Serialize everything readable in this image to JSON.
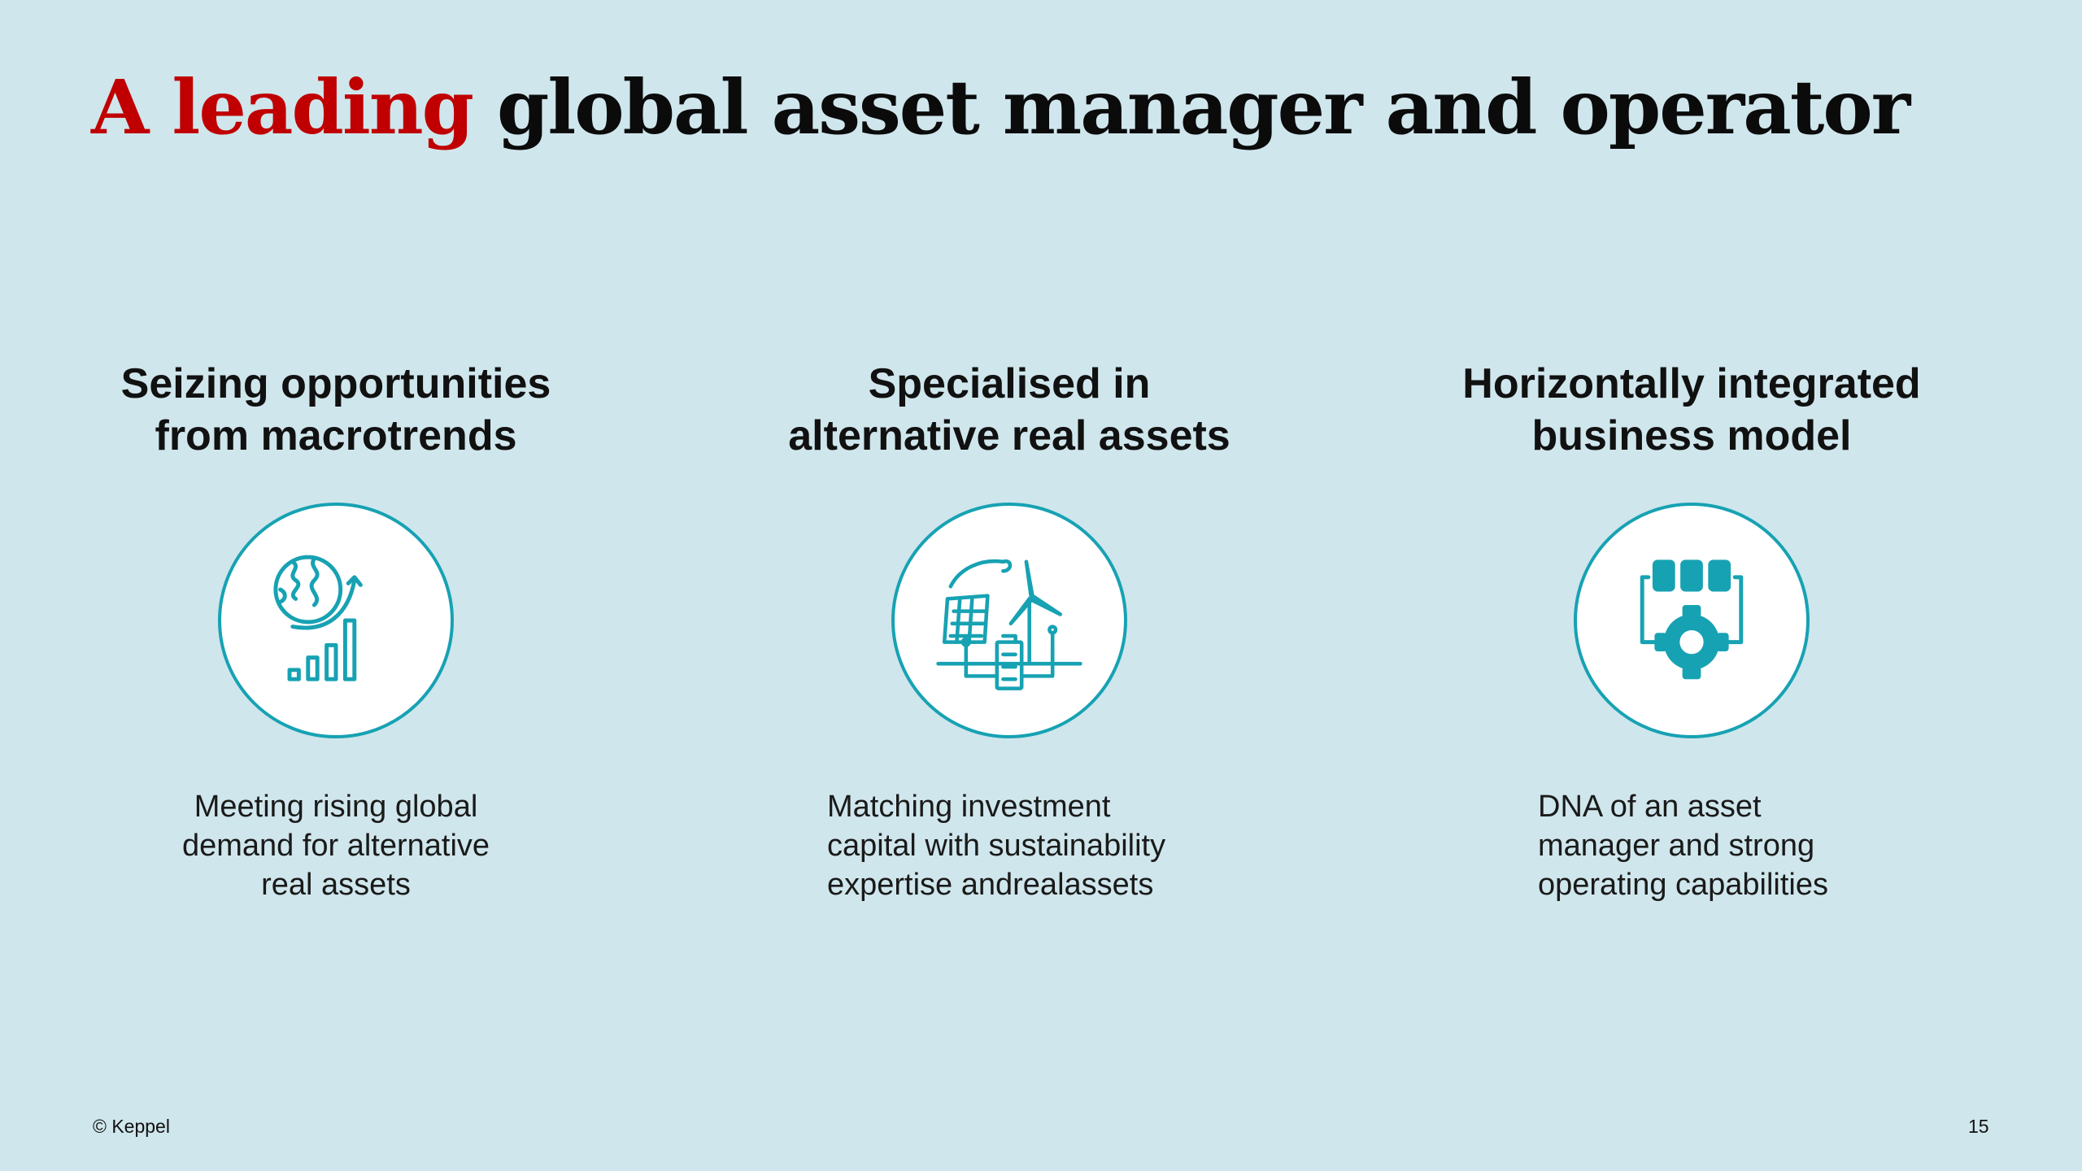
{
  "title": {
    "accent": "A leading",
    "rest": " global asset manager and operator"
  },
  "columns": [
    {
      "heading": [
        "Seizing opportunities",
        "from macrotrends"
      ],
      "icon": "globe-growth-chart-icon",
      "text": [
        "Meeting rising global",
        "demand for alternative",
        "real assets"
      ]
    },
    {
      "heading": [
        "Specialised in",
        "alternative real assets"
      ],
      "icon": "solar-wind-battery-icon",
      "text": [
        "Matching investment",
        "capital with sustainability",
        "expertise andrealassets"
      ]
    },
    {
      "heading": [
        "Horizontally integrated",
        "business model"
      ],
      "icon": "modules-gear-icon",
      "text": [
        "DNA of an asset",
        "manager and strong",
        "operating capabilities"
      ]
    }
  ],
  "footer": {
    "copyright": "© Keppel",
    "page_number": "15"
  },
  "colors": {
    "background": "#cfe6ec",
    "accent_red": "#c00000",
    "icon_teal": "#17a2b3"
  }
}
